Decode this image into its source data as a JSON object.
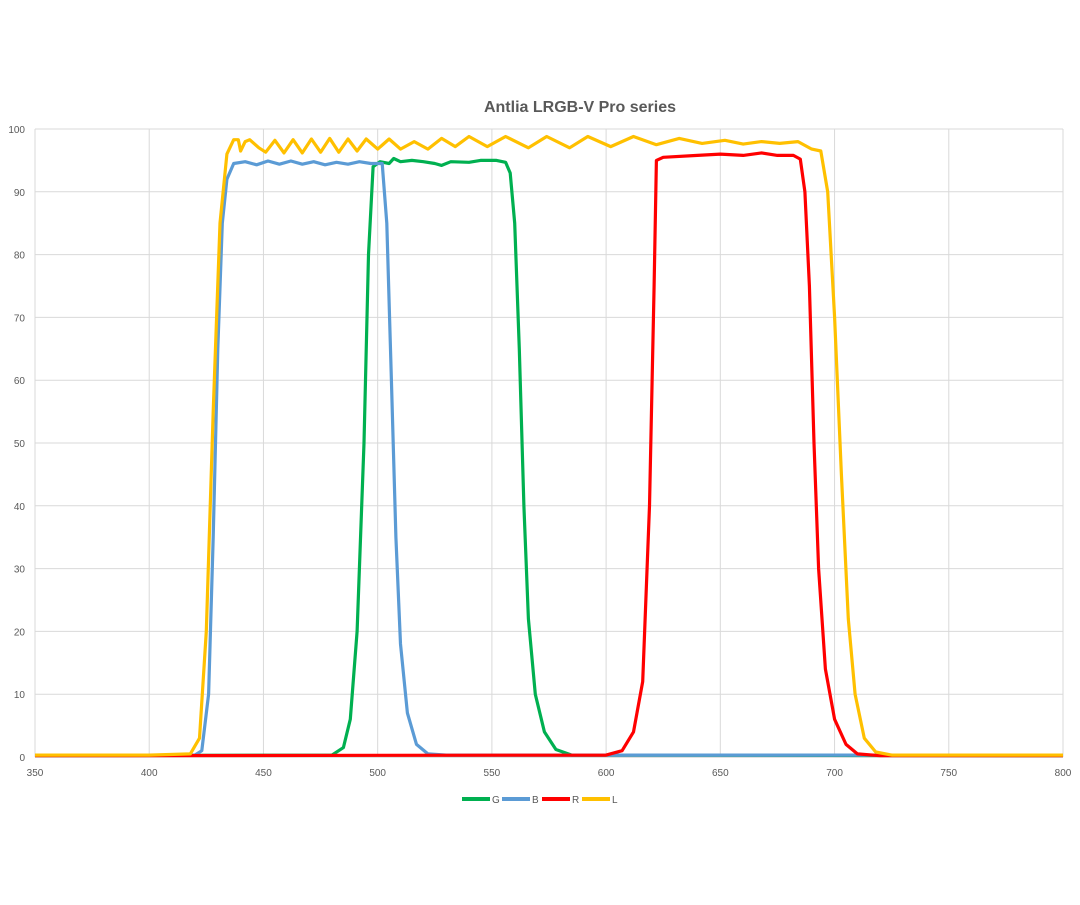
{
  "chart_data": {
    "type": "line",
    "title": "Antlia LRGB-V Pro series",
    "xlabel": "",
    "ylabel": "",
    "xlim": [
      350,
      800
    ],
    "ylim": [
      0,
      100
    ],
    "xticks": [
      350,
      400,
      450,
      500,
      550,
      600,
      650,
      700,
      750,
      800
    ],
    "yticks": [
      0,
      10,
      20,
      30,
      40,
      50,
      60,
      70,
      80,
      90,
      100
    ],
    "grid": true,
    "legend_position": "bottom",
    "series": [
      {
        "name": "G",
        "color": "#00B050",
        "x": [
          350,
          480,
          485,
          488,
          491,
          494,
          496,
          498,
          501,
          505,
          507,
          510,
          515,
          520,
          525,
          528,
          532,
          540,
          545,
          552,
          556,
          558,
          560,
          562,
          564,
          566,
          569,
          573,
          578,
          585,
          800
        ],
        "y": [
          0.2,
          0.3,
          1.5,
          6,
          20,
          50,
          80,
          94,
          94.8,
          94.5,
          95.3,
          94.8,
          95,
          94.8,
          94.5,
          94.2,
          94.8,
          94.7,
          95,
          95,
          94.7,
          93,
          85,
          65,
          40,
          22,
          10,
          4,
          1.2,
          0.3,
          0.2
        ]
      },
      {
        "name": "B",
        "color": "#5B9BD5",
        "x": [
          350,
          420,
          423,
          426,
          428,
          430,
          432,
          434,
          437,
          442,
          447,
          452,
          457,
          462,
          467,
          472,
          477,
          482,
          487,
          492,
          497,
          502,
          504,
          506,
          508,
          510,
          513,
          517,
          522,
          530,
          800
        ],
        "y": [
          0.3,
          0.3,
          1,
          10,
          35,
          65,
          85,
          92,
          94.5,
          94.8,
          94.3,
          94.9,
          94.4,
          94.9,
          94.4,
          94.8,
          94.3,
          94.7,
          94.4,
          94.8,
          94.5,
          94.5,
          85,
          60,
          35,
          18,
          7,
          2,
          0.5,
          0.3,
          0.3
        ]
      },
      {
        "name": "R",
        "color": "#FF0000",
        "x": [
          350,
          600,
          607,
          612,
          616,
          619,
          621,
          622,
          625,
          640,
          650,
          660,
          668,
          675,
          682,
          685,
          687,
          689,
          691,
          693,
          696,
          700,
          705,
          710,
          720,
          800
        ],
        "y": [
          0.2,
          0.3,
          1,
          4,
          12,
          40,
          75,
          95,
          95.5,
          95.8,
          96,
          95.8,
          96.2,
          95.8,
          95.8,
          95.2,
          90,
          75,
          50,
          30,
          14,
          6,
          2,
          0.5,
          0.2,
          0.2
        ]
      },
      {
        "name": "L",
        "color": "#FFC000",
        "x": [
          350,
          400,
          418,
          422,
          425,
          428,
          431,
          434,
          437,
          439,
          440,
          442,
          444,
          448,
          451,
          455,
          459,
          463,
          467,
          471,
          475,
          479,
          483,
          487,
          491,
          495,
          500,
          505,
          510,
          516,
          522,
          528,
          534,
          540,
          548,
          556,
          566,
          574,
          584,
          592,
          602,
          612,
          622,
          632,
          642,
          652,
          660,
          668,
          676,
          684,
          690,
          694,
          697,
          700,
          703,
          706,
          709,
          713,
          718,
          725,
          800
        ],
        "y": [
          0.3,
          0.3,
          0.5,
          3,
          20,
          55,
          85,
          96,
          98.3,
          98.3,
          96.5,
          98,
          98.3,
          97,
          96.3,
          98.2,
          96.2,
          98.3,
          96.2,
          98.4,
          96.3,
          98.5,
          96.3,
          98.4,
          96.5,
          98.4,
          96.8,
          98.4,
          96.8,
          98,
          96.8,
          98.5,
          97.2,
          98.8,
          97.2,
          98.8,
          97,
          98.8,
          97,
          98.8,
          97.2,
          98.8,
          97.5,
          98.5,
          97.7,
          98.2,
          97.6,
          98,
          97.7,
          98,
          96.8,
          96.5,
          90,
          70,
          45,
          22,
          10,
          3,
          0.8,
          0.3,
          0.3
        ]
      }
    ]
  }
}
